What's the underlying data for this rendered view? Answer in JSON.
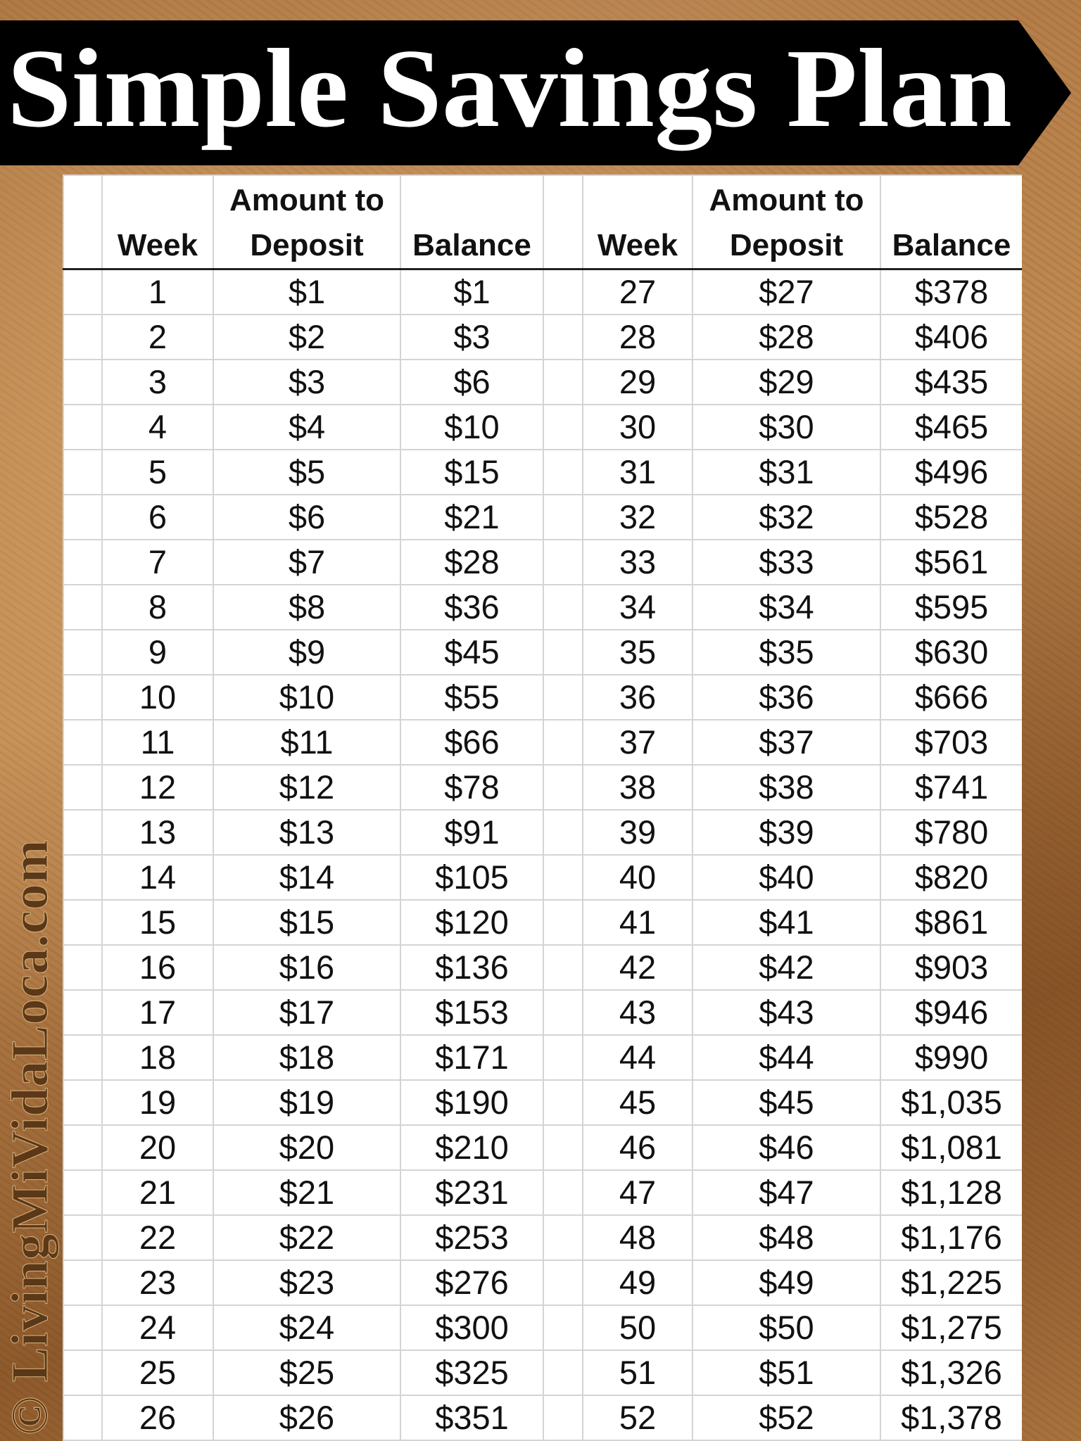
{
  "title": "Simple Savings Plan",
  "watermark": "© LivingMiVidaLoca.com",
  "colors": {
    "banner": "#000000",
    "title": "#ffffff",
    "background": "#a8713e"
  },
  "headers": {
    "week": "Week",
    "amount": "Amount to Deposit",
    "amount_line1": "Amount to",
    "amount_line2": "Deposit",
    "balance": "Balance"
  },
  "rows": [
    [
      "1",
      "$1",
      "$1",
      "27",
      "$27",
      "$378"
    ],
    [
      "2",
      "$2",
      "$3",
      "28",
      "$28",
      "$406"
    ],
    [
      "3",
      "$3",
      "$6",
      "29",
      "$29",
      "$435"
    ],
    [
      "4",
      "$4",
      "$10",
      "30",
      "$30",
      "$465"
    ],
    [
      "5",
      "$5",
      "$15",
      "31",
      "$31",
      "$496"
    ],
    [
      "6",
      "$6",
      "$21",
      "32",
      "$32",
      "$528"
    ],
    [
      "7",
      "$7",
      "$28",
      "33",
      "$33",
      "$561"
    ],
    [
      "8",
      "$8",
      "$36",
      "34",
      "$34",
      "$595"
    ],
    [
      "9",
      "$9",
      "$45",
      "35",
      "$35",
      "$630"
    ],
    [
      "10",
      "$10",
      "$55",
      "36",
      "$36",
      "$666"
    ],
    [
      "11",
      "$11",
      "$66",
      "37",
      "$37",
      "$703"
    ],
    [
      "12",
      "$12",
      "$78",
      "38",
      "$38",
      "$741"
    ],
    [
      "13",
      "$13",
      "$91",
      "39",
      "$39",
      "$780"
    ],
    [
      "14",
      "$14",
      "$105",
      "40",
      "$40",
      "$820"
    ],
    [
      "15",
      "$15",
      "$120",
      "41",
      "$41",
      "$861"
    ],
    [
      "16",
      "$16",
      "$136",
      "42",
      "$42",
      "$903"
    ],
    [
      "17",
      "$17",
      "$153",
      "43",
      "$43",
      "$946"
    ],
    [
      "18",
      "$18",
      "$171",
      "44",
      "$44",
      "$990"
    ],
    [
      "19",
      "$19",
      "$190",
      "45",
      "$45",
      "$1,035"
    ],
    [
      "20",
      "$20",
      "$210",
      "46",
      "$46",
      "$1,081"
    ],
    [
      "21",
      "$21",
      "$231",
      "47",
      "$47",
      "$1,128"
    ],
    [
      "22",
      "$22",
      "$253",
      "48",
      "$48",
      "$1,176"
    ],
    [
      "23",
      "$23",
      "$276",
      "49",
      "$49",
      "$1,225"
    ],
    [
      "24",
      "$24",
      "$300",
      "50",
      "$50",
      "$1,275"
    ],
    [
      "25",
      "$25",
      "$325",
      "51",
      "$51",
      "$1,326"
    ],
    [
      "26",
      "$26",
      "$351",
      "52",
      "$52",
      "$1,378"
    ]
  ]
}
